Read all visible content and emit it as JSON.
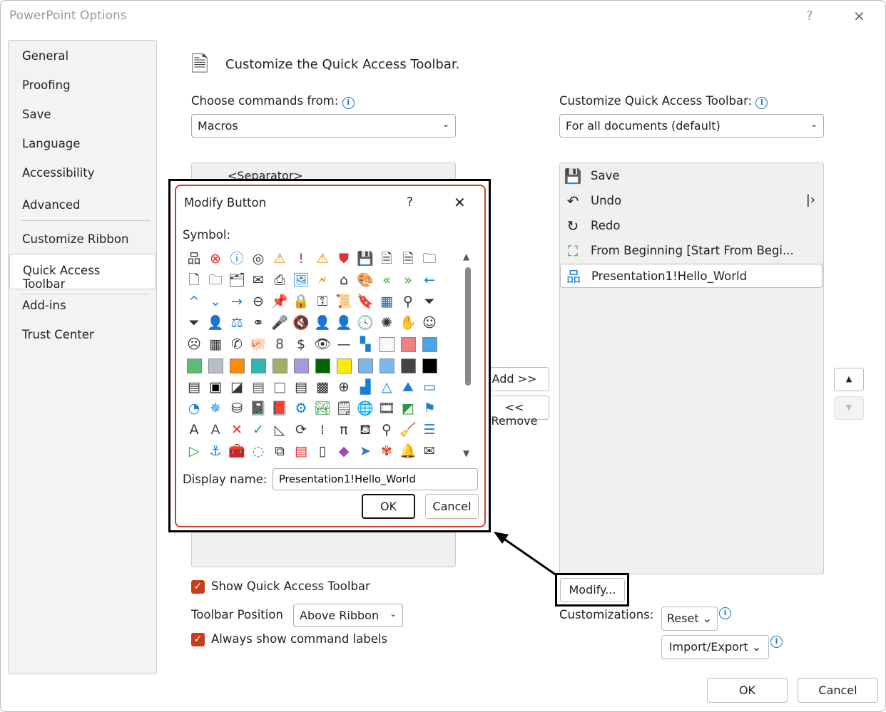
{
  "window": {
    "title": "PowerPoint Options",
    "help": "?",
    "close": "✕"
  },
  "nav": {
    "items": [
      "General",
      "Proofing",
      "Save",
      "Language",
      "Accessibility",
      "Advanced",
      "Customize Ribbon",
      "Quick Access Toolbar",
      "Add-ins",
      "Trust Center"
    ],
    "selected": "Quick Access Toolbar"
  },
  "main": {
    "heading": "Customize the Quick Access Toolbar.",
    "choose_label": "Choose commands from:",
    "choose_value": "Macros",
    "customize_label": "Customize Quick Access Toolbar:",
    "customize_value": "For all documents (default)",
    "left_list": [
      "<Separator>"
    ],
    "add_label": "Add >>",
    "remove_label": "<< Remove",
    "right_list": [
      {
        "label": "Save",
        "icon": "save-icon"
      },
      {
        "label": "Undo",
        "icon": "undo-icon"
      },
      {
        "label": "Redo",
        "icon": "redo-icon"
      },
      {
        "label": "From Beginning [Start From Begi...",
        "icon": "slideshow-icon"
      },
      {
        "label": "Presentation1!Hello_World",
        "icon": "macro-icon",
        "selected": true
      }
    ],
    "show_qat_label": "Show Quick Access Toolbar",
    "show_qat_checked": true,
    "position_label": "Toolbar Position",
    "position_value": "Above Ribbon",
    "always_labels_label": "Always show command labels",
    "always_labels_checked": true,
    "modify_label": "Modify...",
    "customizations_label": "Customizations:",
    "reset_label": "Reset",
    "import_export_label": "Import/Export",
    "ok_label": "OK",
    "cancel_label": "Cancel"
  },
  "modify_dialog": {
    "title": "Modify Button",
    "help": "?",
    "close": "✕",
    "symbol_label": "Symbol:",
    "display_name_label": "Display name:",
    "display_name_value": "Presentation1!Hello_World",
    "ok_label": "OK",
    "cancel_label": "Cancel",
    "selected_index": 129,
    "symbols": [
      [
        "org-chart",
        "品",
        "#444"
      ],
      [
        "error-circle",
        "⊗",
        "#e03030"
      ],
      [
        "info-circle",
        "ⓘ",
        "#1a7fd4"
      ],
      [
        "target",
        "◎",
        "#333"
      ],
      [
        "warning",
        "⚠",
        "#e08a00"
      ],
      [
        "exclamation",
        "!",
        "#e03030"
      ],
      [
        "warning-2",
        "⚠",
        "#e08a00"
      ],
      [
        "shield",
        "⛊",
        "#e03030"
      ],
      [
        "save-purple",
        "💾",
        "#a04ab0"
      ],
      [
        "doc-arrow",
        "🗎",
        "#333"
      ],
      [
        "doc-arrow-2",
        "🗎",
        "#333"
      ],
      [
        "folder",
        "🗀",
        "#333"
      ],
      [
        "document",
        "🗋",
        "#333"
      ],
      [
        "folder-2",
        "🗀",
        "#333"
      ],
      [
        "folders",
        "🗂",
        "#333"
      ],
      [
        "folder-mail",
        "✉",
        "#333"
      ],
      [
        "printer",
        "⎙",
        "#333"
      ],
      [
        "picture",
        "🖼",
        "#1a7fd4"
      ],
      [
        "doc-lightning",
        "🗲",
        "#e08a00"
      ],
      [
        "home",
        "⌂",
        "#333"
      ],
      [
        "palette",
        "🎨",
        "#333"
      ],
      [
        "double-left",
        "«",
        "#2a9d3a"
      ],
      [
        "double-right",
        "»",
        "#2a9d3a"
      ],
      [
        "arrow-left",
        "←",
        "#1a7fd4"
      ],
      [
        "chevron-up",
        "^",
        "#1a7fd4"
      ],
      [
        "chevron-down",
        "⌄",
        "#1a7fd4"
      ],
      [
        "arrow-right",
        "→",
        "#1a7fd4"
      ],
      [
        "circle-left",
        "⊖",
        "#333"
      ],
      [
        "pin",
        "📌",
        "#333"
      ],
      [
        "lock",
        "🔒",
        "#333"
      ],
      [
        "key",
        "⚿",
        "#333"
      ],
      [
        "scroll",
        "📜",
        "#333"
      ],
      [
        "bookmark",
        "🔖",
        "#333"
      ],
      [
        "table-window",
        "▦",
        "#1a5fa0"
      ],
      [
        "magnifier",
        "⚲",
        "#333"
      ],
      [
        "filter",
        "⏷",
        "#333"
      ],
      [
        "filter-2",
        "⏷",
        "#333"
      ],
      [
        "contact-card",
        "👤",
        "#333"
      ],
      [
        "scales",
        "⚖",
        "#1a7fd4"
      ],
      [
        "circles",
        "⚭",
        "#333"
      ],
      [
        "microphone",
        "🎤",
        "#1a7fd4"
      ],
      [
        "mute",
        "🔇",
        "#e03030"
      ],
      [
        "person-dark",
        "👤",
        "#555"
      ],
      [
        "person",
        "👤",
        "#333"
      ],
      [
        "clock",
        "🕓",
        "#333"
      ],
      [
        "sparkle",
        "✺",
        "#333"
      ],
      [
        "hand",
        "✋",
        "#333"
      ],
      [
        "smile",
        "☺",
        "#333"
      ],
      [
        "frown",
        "☹",
        "#333"
      ],
      [
        "calculator",
        "▦",
        "#333"
      ],
      [
        "phone",
        "✆",
        "#333"
      ],
      [
        "piggy-bank",
        "🐖",
        "#333"
      ],
      [
        "eight-ball",
        "8",
        "#555"
      ],
      [
        "quote-dollar",
        "$",
        "#333"
      ],
      [
        "eye",
        "👁",
        "#333"
      ],
      [
        "dash",
        "—",
        "#333"
      ],
      [
        "tiles",
        "▚",
        "#1a7fd4"
      ],
      [
        "swatch-white",
        "#f8f8f8",
        "swatch"
      ],
      [
        "swatch-pink",
        "#f08088",
        "swatch"
      ],
      [
        "swatch-blue",
        "#4aa5e8",
        "swatch"
      ],
      [
        "swatch-green",
        "#5dbb7a",
        "swatch"
      ],
      [
        "swatch-gray",
        "#b8bec8",
        "swatch"
      ],
      [
        "swatch-orange",
        "#ff8c00",
        "swatch"
      ],
      [
        "swatch-teal",
        "#30b8b0",
        "swatch"
      ],
      [
        "swatch-olive",
        "#a0b068",
        "swatch"
      ],
      [
        "swatch-lavender",
        "#a898e0",
        "swatch"
      ],
      [
        "swatch-darkgreen",
        "#006600",
        "swatch"
      ],
      [
        "swatch-yellow",
        "#ffee00",
        "swatch"
      ],
      [
        "swatch-lightblue",
        "#7ab8ec",
        "swatch"
      ],
      [
        "swatch-pattern",
        "#7ab8ec",
        "swatch"
      ],
      [
        "swatch-diagonal",
        "#444",
        "swatch"
      ],
      [
        "swatch-black",
        "#000000",
        "swatch"
      ],
      [
        "gradient-dark",
        "▤",
        "#333"
      ],
      [
        "square-bold",
        "▣",
        "#000"
      ],
      [
        "diagonal-square",
        "◪",
        "#333"
      ],
      [
        "gradient-gray",
        "▤",
        "#555"
      ],
      [
        "square-empty",
        "□",
        "#666"
      ],
      [
        "gradient-stripes",
        "▤",
        "#333"
      ],
      [
        "checker",
        "▩",
        "#222"
      ],
      [
        "circle-right",
        "⊕",
        "#333"
      ],
      [
        "bar-chart",
        "▟",
        "#1a7fd4"
      ],
      [
        "cone",
        "△",
        "#1a7fd4"
      ],
      [
        "mountains",
        "⛰",
        "#1a7fd4"
      ],
      [
        "bars-horizontal",
        "▭",
        "#1a7fd4"
      ],
      [
        "pie-chart",
        "◔",
        "#1a7fd4"
      ],
      [
        "radar-chart",
        "✵",
        "#1a7fd4"
      ],
      [
        "database",
        "⛁",
        "#333"
      ],
      [
        "notebook",
        "📓",
        "#333"
      ],
      [
        "book-red",
        "📕",
        "#e03030"
      ],
      [
        "device-gear",
        "⚙",
        "#1a7fd4"
      ],
      [
        "landscape",
        "🏞",
        "#2a9d3a"
      ],
      [
        "notebook-2",
        "🗒",
        "#333"
      ],
      [
        "image-globe",
        "🌐",
        "#1a7fd4"
      ],
      [
        "dashed-film",
        "🎞",
        "#333"
      ],
      [
        "color-diagonal",
        "◩",
        "#2a9d3a"
      ],
      [
        "flags",
        "⚑",
        "#1a7fd4"
      ],
      [
        "letter-a-box",
        "A",
        "#333"
      ],
      [
        "letter-a-gray",
        "A",
        "#555"
      ],
      [
        "x-mark",
        "✕",
        "#e03030"
      ],
      [
        "check-mark",
        "✓",
        "#2a9d3a"
      ],
      [
        "triangle-ruler",
        "◺",
        "#333"
      ],
      [
        "sync",
        "⟳",
        "#333"
      ],
      [
        "binary",
        "⁞",
        "#333"
      ],
      [
        "pi",
        "π",
        "#333"
      ],
      [
        "paint-bucket",
        "⛾",
        "#333"
      ],
      [
        "magnifier-2",
        "⚲",
        "#333"
      ],
      [
        "broom",
        "🧹",
        "#e08a00"
      ],
      [
        "bullet-list",
        "☰",
        "#1a7fd4"
      ],
      [
        "play",
        "▷",
        "#2a9d3a"
      ],
      [
        "anchor",
        "⚓",
        "#1a7fd4"
      ],
      [
        "toolbox",
        "🧰",
        "#1a7fd4"
      ],
      [
        "dashed-circle-plus",
        "◌",
        "#2a9d3a"
      ],
      [
        "copy",
        "⧉",
        "#333"
      ],
      [
        "list-alert",
        "▤",
        "#e03030"
      ],
      [
        "notebook-3",
        "▯",
        "#333"
      ],
      [
        "eraser",
        "◆",
        "#a04ab0"
      ],
      [
        "send",
        "➤",
        "#1a7fd4"
      ],
      [
        "butterfly",
        "✾",
        "#e04020"
      ],
      [
        "bell",
        "🔔",
        "#333"
      ],
      [
        "envelope-open",
        "✉",
        "#333"
      ]
    ]
  }
}
